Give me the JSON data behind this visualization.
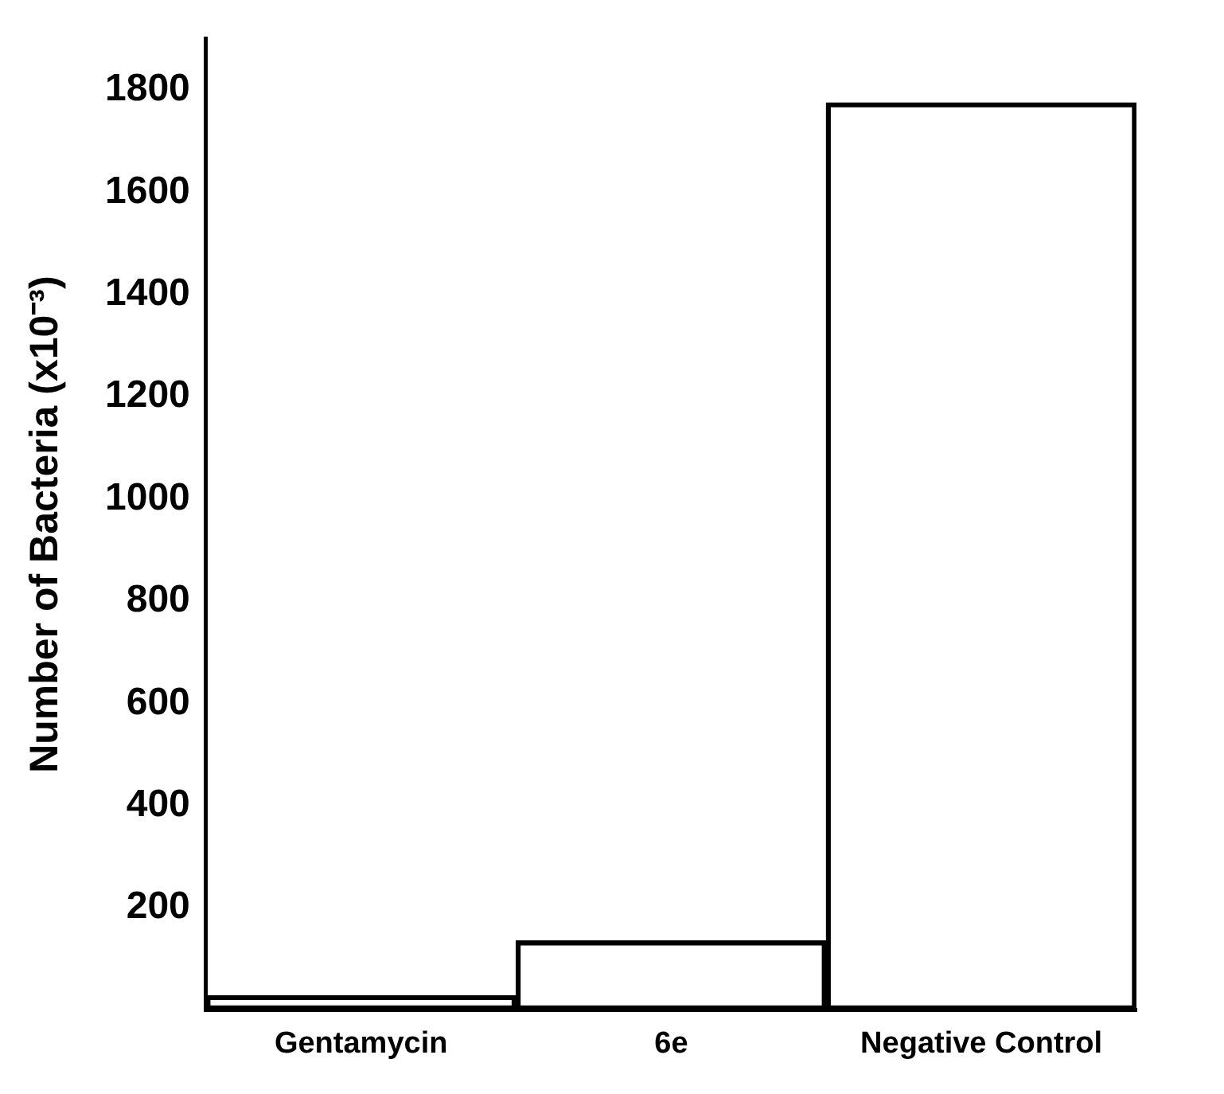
{
  "chart_data": {
    "type": "bar",
    "ylabel": "Number of Bacteria (x10⁻³)",
    "categories": [
      "Gentamycin",
      "6e",
      "Negative Control"
    ],
    "values": [
      28,
      135,
      1775
    ],
    "color": "#000000",
    "ylim": [
      0,
      1900
    ],
    "yticks": [
      200,
      400,
      600,
      800,
      1000,
      1200,
      1400,
      1600,
      1800
    ],
    "grid": false,
    "legend": false
  }
}
